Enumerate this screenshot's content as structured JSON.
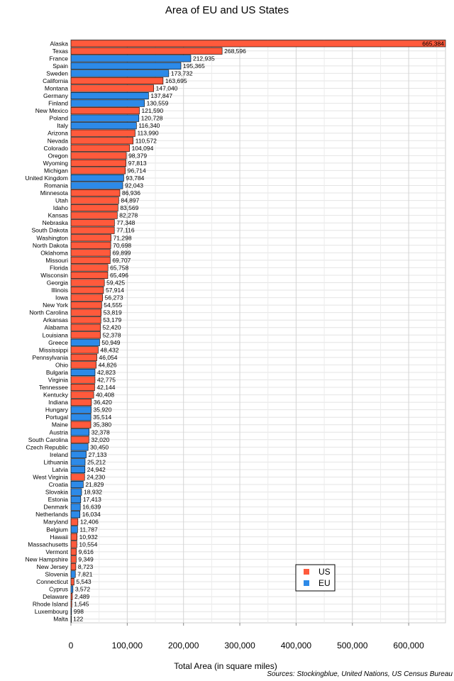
{
  "chart_data": {
    "type": "bar",
    "orientation": "horizontal",
    "title": "Area of EU and US States",
    "xlabel": "Total Area (in square miles)",
    "ylabel": "",
    "xlim": [
      0,
      665384
    ],
    "xticks": [
      0,
      100000,
      200000,
      300000,
      400000,
      500000,
      600000
    ],
    "xtick_labels": [
      "0",
      "100,000",
      "200,000",
      "300,000",
      "400,000",
      "500,000",
      "600,000"
    ],
    "grid": true,
    "legend_position": "bottom-right",
    "source": "Sources: Stockingblue, United Nations, US Census Bureau",
    "groups": [
      {
        "name": "US",
        "color": "#ff5a3c"
      },
      {
        "name": "EU",
        "color": "#2d8ae8"
      }
    ],
    "bars": [
      {
        "label": "Alaska",
        "value": 665384,
        "value_label": "665,384",
        "group": "US"
      },
      {
        "label": "Texas",
        "value": 268596,
        "value_label": "268,596",
        "group": "US"
      },
      {
        "label": "France",
        "value": 212935,
        "value_label": "212,935",
        "group": "EU"
      },
      {
        "label": "Spain",
        "value": 195365,
        "value_label": "195,365",
        "group": "EU"
      },
      {
        "label": "Sweden",
        "value": 173732,
        "value_label": "173,732",
        "group": "EU"
      },
      {
        "label": "California",
        "value": 163695,
        "value_label": "163,695",
        "group": "US"
      },
      {
        "label": "Montana",
        "value": 147040,
        "value_label": "147,040",
        "group": "US"
      },
      {
        "label": "Germany",
        "value": 137847,
        "value_label": "137,847",
        "group": "EU"
      },
      {
        "label": "Finland",
        "value": 130559,
        "value_label": "130,559",
        "group": "EU"
      },
      {
        "label": "New Mexico",
        "value": 121590,
        "value_label": "121,590",
        "group": "US"
      },
      {
        "label": "Poland",
        "value": 120728,
        "value_label": "120,728",
        "group": "EU"
      },
      {
        "label": "Italy",
        "value": 116340,
        "value_label": "116,340",
        "group": "EU"
      },
      {
        "label": "Arizona",
        "value": 113990,
        "value_label": "113,990",
        "group": "US"
      },
      {
        "label": "Nevada",
        "value": 110572,
        "value_label": "110,572",
        "group": "US"
      },
      {
        "label": "Colorado",
        "value": 104094,
        "value_label": "104,094",
        "group": "US"
      },
      {
        "label": "Oregon",
        "value": 98379,
        "value_label": "98,379",
        "group": "US"
      },
      {
        "label": "Wyoming",
        "value": 97813,
        "value_label": "97,813",
        "group": "US"
      },
      {
        "label": "Michigan",
        "value": 96714,
        "value_label": "96,714",
        "group": "US"
      },
      {
        "label": "United Kingdom",
        "value": 93784,
        "value_label": "93,784",
        "group": "EU"
      },
      {
        "label": "Romania",
        "value": 92043,
        "value_label": "92,043",
        "group": "EU"
      },
      {
        "label": "Minnesota",
        "value": 86936,
        "value_label": "86,936",
        "group": "US"
      },
      {
        "label": "Utah",
        "value": 84897,
        "value_label": "84,897",
        "group": "US"
      },
      {
        "label": "Idaho",
        "value": 83569,
        "value_label": "83,569",
        "group": "US"
      },
      {
        "label": "Kansas",
        "value": 82278,
        "value_label": "82,278",
        "group": "US"
      },
      {
        "label": "Nebraska",
        "value": 77348,
        "value_label": "77,348",
        "group": "US"
      },
      {
        "label": "South Dakota",
        "value": 77116,
        "value_label": "77,116",
        "group": "US"
      },
      {
        "label": "Washington",
        "value": 71298,
        "value_label": "71,298",
        "group": "US"
      },
      {
        "label": "North Dakota",
        "value": 70698,
        "value_label": "70,698",
        "group": "US"
      },
      {
        "label": "Oklahoma",
        "value": 69899,
        "value_label": "69,899",
        "group": "US"
      },
      {
        "label": "Missouri",
        "value": 69707,
        "value_label": "69,707",
        "group": "US"
      },
      {
        "label": "Florida",
        "value": 65758,
        "value_label": "65,758",
        "group": "US"
      },
      {
        "label": "Wisconsin",
        "value": 65496,
        "value_label": "65,496",
        "group": "US"
      },
      {
        "label": "Georgia",
        "value": 59425,
        "value_label": "59,425",
        "group": "US"
      },
      {
        "label": "Illinois",
        "value": 57914,
        "value_label": "57,914",
        "group": "US"
      },
      {
        "label": "Iowa",
        "value": 56273,
        "value_label": "56,273",
        "group": "US"
      },
      {
        "label": "New York",
        "value": 54555,
        "value_label": "54,555",
        "group": "US"
      },
      {
        "label": "North Carolina",
        "value": 53819,
        "value_label": "53,819",
        "group": "US"
      },
      {
        "label": "Arkansas",
        "value": 53179,
        "value_label": "53,179",
        "group": "US"
      },
      {
        "label": "Alabama",
        "value": 52420,
        "value_label": "52,420",
        "group": "US"
      },
      {
        "label": "Louisiana",
        "value": 52378,
        "value_label": "52,378",
        "group": "US"
      },
      {
        "label": "Greece",
        "value": 50949,
        "value_label": "50,949",
        "group": "EU"
      },
      {
        "label": "Mississippi",
        "value": 48432,
        "value_label": "48,432",
        "group": "US"
      },
      {
        "label": "Pennsylvania",
        "value": 46054,
        "value_label": "46,054",
        "group": "US"
      },
      {
        "label": "Ohio",
        "value": 44826,
        "value_label": "44,826",
        "group": "US"
      },
      {
        "label": "Bulgaria",
        "value": 42823,
        "value_label": "42,823",
        "group": "EU"
      },
      {
        "label": "Virginia",
        "value": 42775,
        "value_label": "42,775",
        "group": "US"
      },
      {
        "label": "Tennessee",
        "value": 42144,
        "value_label": "42,144",
        "group": "US"
      },
      {
        "label": "Kentucky",
        "value": 40408,
        "value_label": "40,408",
        "group": "US"
      },
      {
        "label": "Indiana",
        "value": 36420,
        "value_label": "36,420",
        "group": "US"
      },
      {
        "label": "Hungary",
        "value": 35920,
        "value_label": "35,920",
        "group": "EU"
      },
      {
        "label": "Portugal",
        "value": 35514,
        "value_label": "35,514",
        "group": "EU"
      },
      {
        "label": "Maine",
        "value": 35380,
        "value_label": "35,380",
        "group": "US"
      },
      {
        "label": "Austria",
        "value": 32378,
        "value_label": "32,378",
        "group": "EU"
      },
      {
        "label": "South Carolina",
        "value": 32020,
        "value_label": "32,020",
        "group": "US"
      },
      {
        "label": "Czech Republic",
        "value": 30450,
        "value_label": "30,450",
        "group": "EU"
      },
      {
        "label": "Ireland",
        "value": 27133,
        "value_label": "27,133",
        "group": "EU"
      },
      {
        "label": "Lithuania",
        "value": 25212,
        "value_label": "25,212",
        "group": "EU"
      },
      {
        "label": "Latvia",
        "value": 24942,
        "value_label": "24,942",
        "group": "EU"
      },
      {
        "label": "West Virginia",
        "value": 24230,
        "value_label": "24,230",
        "group": "US"
      },
      {
        "label": "Croatia",
        "value": 21829,
        "value_label": "21,829",
        "group": "EU"
      },
      {
        "label": "Slovakia",
        "value": 18932,
        "value_label": "18,932",
        "group": "EU"
      },
      {
        "label": "Estonia",
        "value": 17413,
        "value_label": "17,413",
        "group": "EU"
      },
      {
        "label": "Denmark",
        "value": 16639,
        "value_label": "16,639",
        "group": "EU"
      },
      {
        "label": "Netherlands",
        "value": 16034,
        "value_label": "16,034",
        "group": "EU"
      },
      {
        "label": "Maryland",
        "value": 12406,
        "value_label": "12,406",
        "group": "US"
      },
      {
        "label": "Belgium",
        "value": 11787,
        "value_label": "11,787",
        "group": "EU"
      },
      {
        "label": "Hawaii",
        "value": 10932,
        "value_label": "10,932",
        "group": "US"
      },
      {
        "label": "Massachusetts",
        "value": 10554,
        "value_label": "10,554",
        "group": "US"
      },
      {
        "label": "Vermont",
        "value": 9616,
        "value_label": "9,616",
        "group": "US"
      },
      {
        "label": "New Hampshire",
        "value": 9349,
        "value_label": "9,349",
        "group": "US"
      },
      {
        "label": "New Jersey",
        "value": 8723,
        "value_label": "8,723",
        "group": "US"
      },
      {
        "label": "Slovenia",
        "value": 7821,
        "value_label": "7,821",
        "group": "EU"
      },
      {
        "label": "Connecticut",
        "value": 5543,
        "value_label": "5,543",
        "group": "US"
      },
      {
        "label": "Cyprus",
        "value": 3572,
        "value_label": "3,572",
        "group": "EU"
      },
      {
        "label": "Delaware",
        "value": 2489,
        "value_label": "2,489",
        "group": "US"
      },
      {
        "label": "Rhode Island",
        "value": 1545,
        "value_label": "1,545",
        "group": "US"
      },
      {
        "label": "Luxembourg",
        "value": 998,
        "value_label": "998",
        "group": "EU"
      },
      {
        "label": "Malta",
        "value": 122,
        "value_label": "122",
        "group": "EU"
      }
    ]
  }
}
